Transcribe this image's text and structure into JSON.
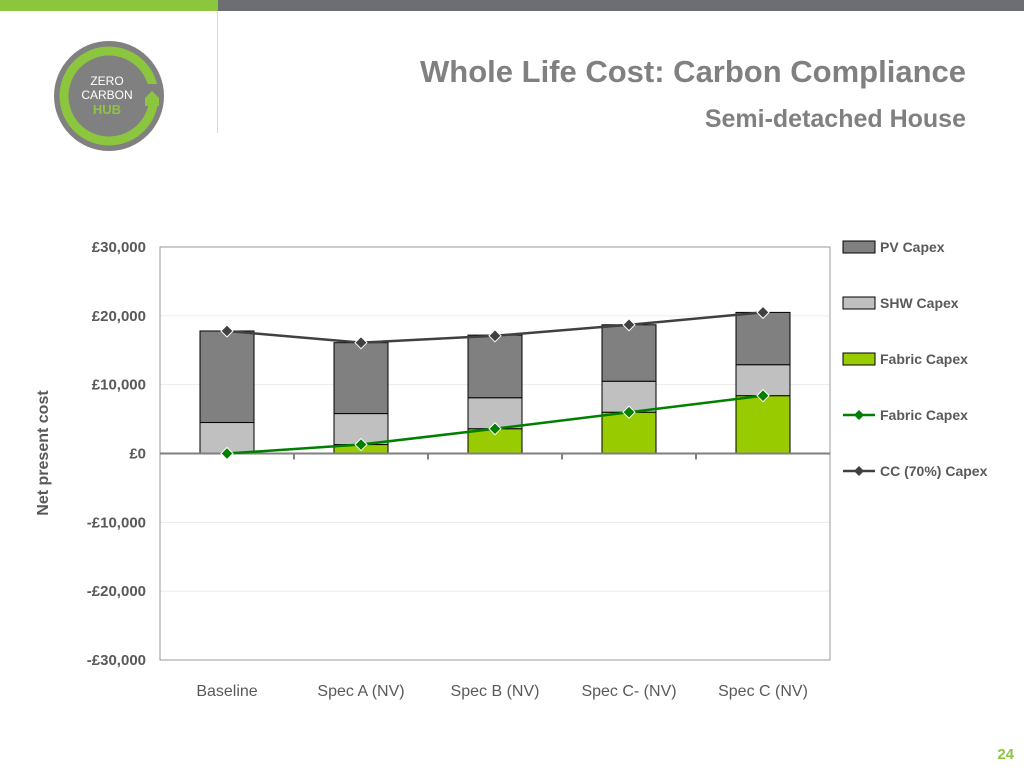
{
  "slide": {
    "title": "Whole Life Cost: Carbon Compliance",
    "subtitle": "Semi-detached House",
    "page_number": "24"
  },
  "logo": {
    "lines": [
      "ZERO",
      "CARBON",
      "HUB"
    ],
    "ring_color": "#8cc63f",
    "fill_color": "#808080"
  },
  "colors": {
    "pv": "#808080",
    "shw": "#c0c0c0",
    "fabric_bar": "#99cc00",
    "fabric_line": "#007f00",
    "cc_line": "#404040",
    "top_bar_green": "#8cc63f",
    "top_bar_gray": "#6d6e71"
  },
  "chart_data": {
    "type": "bar",
    "stacked": true,
    "ylabel": "Net present cost",
    "ylim": [
      -30000,
      30000
    ],
    "yticks": [
      30000,
      20000,
      10000,
      0,
      -10000,
      -20000,
      -30000
    ],
    "ytick_labels": [
      "£30,000",
      "£20,000",
      "£10,000",
      "£0",
      "-£10,000",
      "-£20,000",
      "-£30,000"
    ],
    "categories": [
      "Baseline",
      "Spec A (NV)",
      "Spec B (NV)",
      "Spec C- (NV)",
      "Spec C (NV)"
    ],
    "series": [
      {
        "name": "Fabric Capex",
        "kind": "bar",
        "color": "#99cc00",
        "values": [
          0,
          1300,
          3600,
          6000,
          8400
        ]
      },
      {
        "name": "SHW Capex",
        "kind": "bar",
        "color": "#c0c0c0",
        "values": [
          4500,
          4500,
          4500,
          4500,
          4500
        ]
      },
      {
        "name": "PV Capex",
        "kind": "bar",
        "color": "#808080",
        "values": [
          13300,
          10300,
          9100,
          8200,
          7600
        ]
      },
      {
        "name": "Fabric Capex",
        "kind": "line",
        "color": "#007f00",
        "values": [
          0,
          1300,
          3600,
          6000,
          8400
        ]
      },
      {
        "name": "CC (70%) Capex",
        "kind": "line",
        "color": "#404040",
        "values": [
          17800,
          16100,
          17100,
          18700,
          20500
        ]
      }
    ],
    "legend": [
      {
        "label": "PV Capex",
        "kind": "bar",
        "color": "#808080"
      },
      {
        "label": "SHW Capex",
        "kind": "bar",
        "color": "#c0c0c0"
      },
      {
        "label": "Fabric Capex",
        "kind": "bar",
        "color": "#99cc00"
      },
      {
        "label": "Fabric Capex",
        "kind": "line",
        "color": "#007f00"
      },
      {
        "label": "CC (70%) Capex",
        "kind": "line",
        "color": "#404040"
      }
    ],
    "legend_position": "right",
    "grid": true
  }
}
